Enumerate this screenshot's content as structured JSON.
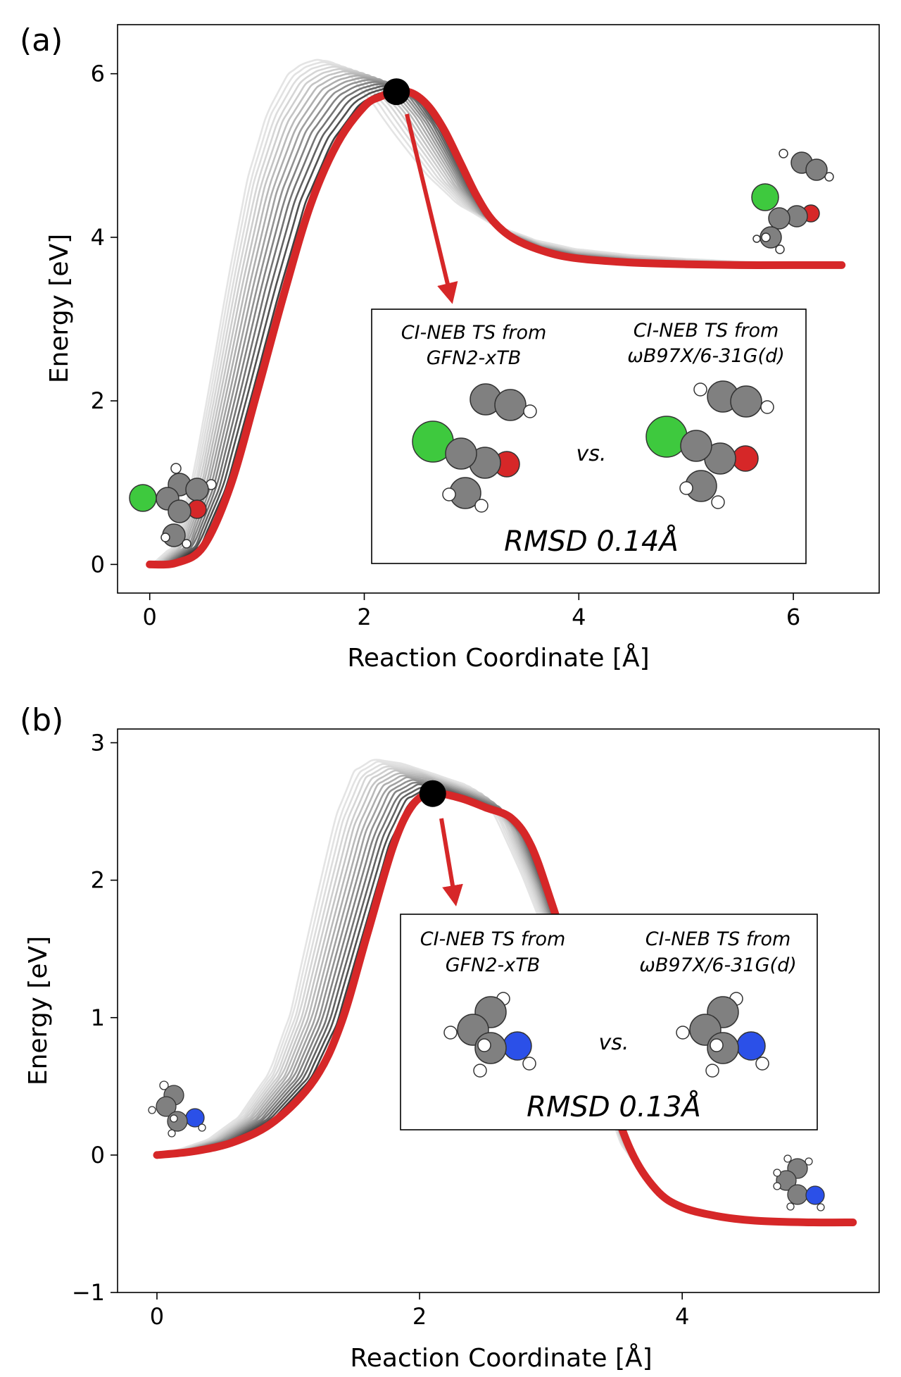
{
  "panel_labels": [
    "(a)",
    "(b)"
  ],
  "colors": {
    "highlight": "#d62728",
    "ts_marker": "#000000",
    "carbon": "#808080",
    "hydrogen": "#ffffff",
    "oxygen": "#d62728",
    "nitrogen": "#2b50e8",
    "chlorine": "#3ec93e",
    "trajectory_light": "#e4e4e4",
    "trajectory_dark": "#2a2a2a"
  },
  "chart_data": [
    {
      "type": "line",
      "panel": "(a)",
      "xlabel": "Reaction Coordinate [Å]",
      "ylabel": "Energy [eV]",
      "xlim": [
        -0.3,
        6.8
      ],
      "ylim": [
        -0.35,
        6.6
      ],
      "xticks": [
        "0",
        "2",
        "4",
        "6"
      ],
      "yticks": [
        "0",
        "2",
        "4",
        "6"
      ],
      "highlight_curve": {
        "x": [
          0.0,
          0.25,
          0.5,
          0.75,
          1.0,
          1.25,
          1.5,
          1.75,
          2.0,
          2.15,
          2.3,
          2.45,
          2.6,
          2.75,
          2.9,
          3.05,
          3.2,
          3.4,
          3.7,
          4.0,
          4.5,
          5.0,
          5.5,
          6.0,
          6.45
        ],
        "y": [
          0.0,
          0.02,
          0.22,
          0.95,
          2.1,
          3.3,
          4.4,
          5.15,
          5.6,
          5.72,
          5.78,
          5.76,
          5.6,
          5.3,
          4.9,
          4.5,
          4.2,
          3.98,
          3.82,
          3.74,
          3.69,
          3.67,
          3.66,
          3.66,
          3.66
        ]
      },
      "transition_state": {
        "x": 2.3,
        "y": 5.78
      },
      "inset": {
        "left_title_lines": [
          "CI-NEB TS from",
          "GFN2-xTB"
        ],
        "right_title_lines": [
          "CI-NEB TS from",
          "ωB97X/6-31G(d)"
        ],
        "vs_label": "vs.",
        "rmsd_label": "RMSD 0.14Å"
      }
    },
    {
      "type": "line",
      "panel": "(b)",
      "xlabel": "Reaction Coordinate [Å]",
      "ylabel": "Energy [eV]",
      "xlim": [
        -0.3,
        5.5
      ],
      "ylim": [
        -1.0,
        3.1
      ],
      "xticks": [
        "0",
        "2",
        "4"
      ],
      "yticks": [
        "−1",
        "0",
        "1",
        "2",
        "3"
      ],
      "highlight_curve": {
        "x": [
          0.0,
          0.3,
          0.6,
          0.9,
          1.2,
          1.4,
          1.6,
          1.8,
          1.95,
          2.1,
          2.3,
          2.5,
          2.7,
          2.85,
          3.0,
          3.2,
          3.4,
          3.6,
          3.8,
          4.0,
          4.3,
          4.6,
          5.0,
          5.3
        ],
        "y": [
          0.0,
          0.03,
          0.1,
          0.25,
          0.55,
          0.95,
          1.6,
          2.25,
          2.55,
          2.63,
          2.6,
          2.53,
          2.45,
          2.25,
          1.85,
          1.25,
          0.6,
          0.05,
          -0.25,
          -0.38,
          -0.45,
          -0.48,
          -0.49,
          -0.49
        ]
      },
      "transition_state": {
        "x": 2.1,
        "y": 2.63
      },
      "inset": {
        "left_title_lines": [
          "CI-NEB TS from",
          "GFN2-xTB"
        ],
        "right_title_lines": [
          "CI-NEB TS from",
          "ωB97X/6-31G(d)"
        ],
        "vs_label": "vs.",
        "rmsd_label": "RMSD 0.13Å"
      }
    }
  ]
}
